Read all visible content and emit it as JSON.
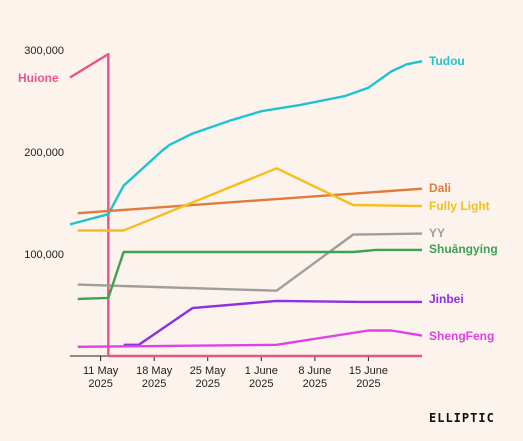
{
  "chart_data": {
    "type": "line",
    "title": "",
    "xlabel": "",
    "ylabel": "",
    "xlim": [
      "2025-05-07",
      "2025-06-22"
    ],
    "ylim": [
      0,
      300000
    ],
    "grid": false,
    "legend": "inline labels at right end of lines",
    "y_ticks": [
      {
        "value": 100000,
        "label": "100,000"
      },
      {
        "value": 200000,
        "label": "200,000"
      },
      {
        "value": 300000,
        "label": "300,000"
      }
    ],
    "x_ticks": [
      {
        "date": "2025-05-11",
        "line1": "11 May",
        "line2": "2025"
      },
      {
        "date": "2025-05-18",
        "line1": "18 May",
        "line2": "2025"
      },
      {
        "date": "2025-05-25",
        "line1": "25 May",
        "line2": "2025"
      },
      {
        "date": "2025-06-01",
        "line1": "1 June",
        "line2": "2025"
      },
      {
        "date": "2025-06-08",
        "line1": "8 June",
        "line2": "2025"
      },
      {
        "date": "2025-06-15",
        "line1": "15 June",
        "line2": "2025"
      }
    ],
    "series": [
      {
        "name": "Huione",
        "color": "#E8548A",
        "label_side": "left",
        "points": [
          [
            "2025-05-07",
            273000
          ],
          [
            "2025-05-12",
            296000
          ],
          [
            "2025-05-12",
            0
          ],
          [
            "2025-06-22",
            0
          ]
        ]
      },
      {
        "name": "Tudou",
        "color": "#1FC3CF",
        "label_side": "right",
        "points": [
          [
            "2025-05-07",
            129000
          ],
          [
            "2025-05-12",
            139000
          ],
          [
            "2025-05-14",
            167000
          ],
          [
            "2025-05-19",
            201000
          ],
          [
            "2025-05-20",
            207000
          ],
          [
            "2025-05-23",
            218000
          ],
          [
            "2025-05-28",
            231000
          ],
          [
            "2025-06-01",
            240000
          ],
          [
            "2025-06-06",
            246000
          ],
          [
            "2025-06-10",
            252000
          ],
          [
            "2025-06-12",
            255000
          ],
          [
            "2025-06-15",
            263000
          ],
          [
            "2025-06-18",
            279000
          ],
          [
            "2025-06-20",
            286000
          ],
          [
            "2025-06-22",
            289000
          ]
        ]
      },
      {
        "name": "Dali",
        "color": "#E07B3C",
        "label_side": "right",
        "points": [
          [
            "2025-05-08",
            140000
          ],
          [
            "2025-06-22",
            164000
          ]
        ]
      },
      {
        "name": "Fully Light",
        "color": "#F5BE1E",
        "label_side": "right",
        "points": [
          [
            "2025-05-08",
            123000
          ],
          [
            "2025-05-14",
            123000
          ],
          [
            "2025-06-03",
            184000
          ],
          [
            "2025-06-13",
            148000
          ],
          [
            "2025-06-22",
            147000
          ]
        ]
      },
      {
        "name": "YY",
        "color": "#9E9E9E",
        "label_side": "right",
        "points": [
          [
            "2025-05-08",
            70000
          ],
          [
            "2025-06-03",
            64000
          ],
          [
            "2025-06-13",
            119000
          ],
          [
            "2025-06-22",
            120000
          ]
        ]
      },
      {
        "name": "Shuāngyíng",
        "color": "#3FA152",
        "label_side": "right",
        "points": [
          [
            "2025-05-08",
            56000
          ],
          [
            "2025-05-12",
            57000
          ],
          [
            "2025-05-14",
            102000
          ],
          [
            "2025-06-13",
            102000
          ],
          [
            "2025-06-16",
            104000
          ],
          [
            "2025-06-22",
            104000
          ]
        ]
      },
      {
        "name": "Jinbei",
        "color": "#8E2FE0",
        "label_side": "right",
        "points": [
          [
            "2025-05-14",
            11000
          ],
          [
            "2025-05-16",
            11000
          ],
          [
            "2025-05-23",
            47000
          ],
          [
            "2025-06-03",
            54000
          ],
          [
            "2025-06-14",
            53000
          ],
          [
            "2025-06-22",
            53000
          ]
        ]
      },
      {
        "name": "ShengFeng",
        "color": "#E040E8",
        "label_side": "right",
        "points": [
          [
            "2025-05-08",
            9000
          ],
          [
            "2025-06-03",
            11000
          ],
          [
            "2025-06-15",
            25000
          ],
          [
            "2025-06-18",
            25000
          ],
          [
            "2025-06-22",
            20000
          ]
        ]
      }
    ]
  },
  "brand": {
    "logo_text": "ELLIPTIC"
  }
}
